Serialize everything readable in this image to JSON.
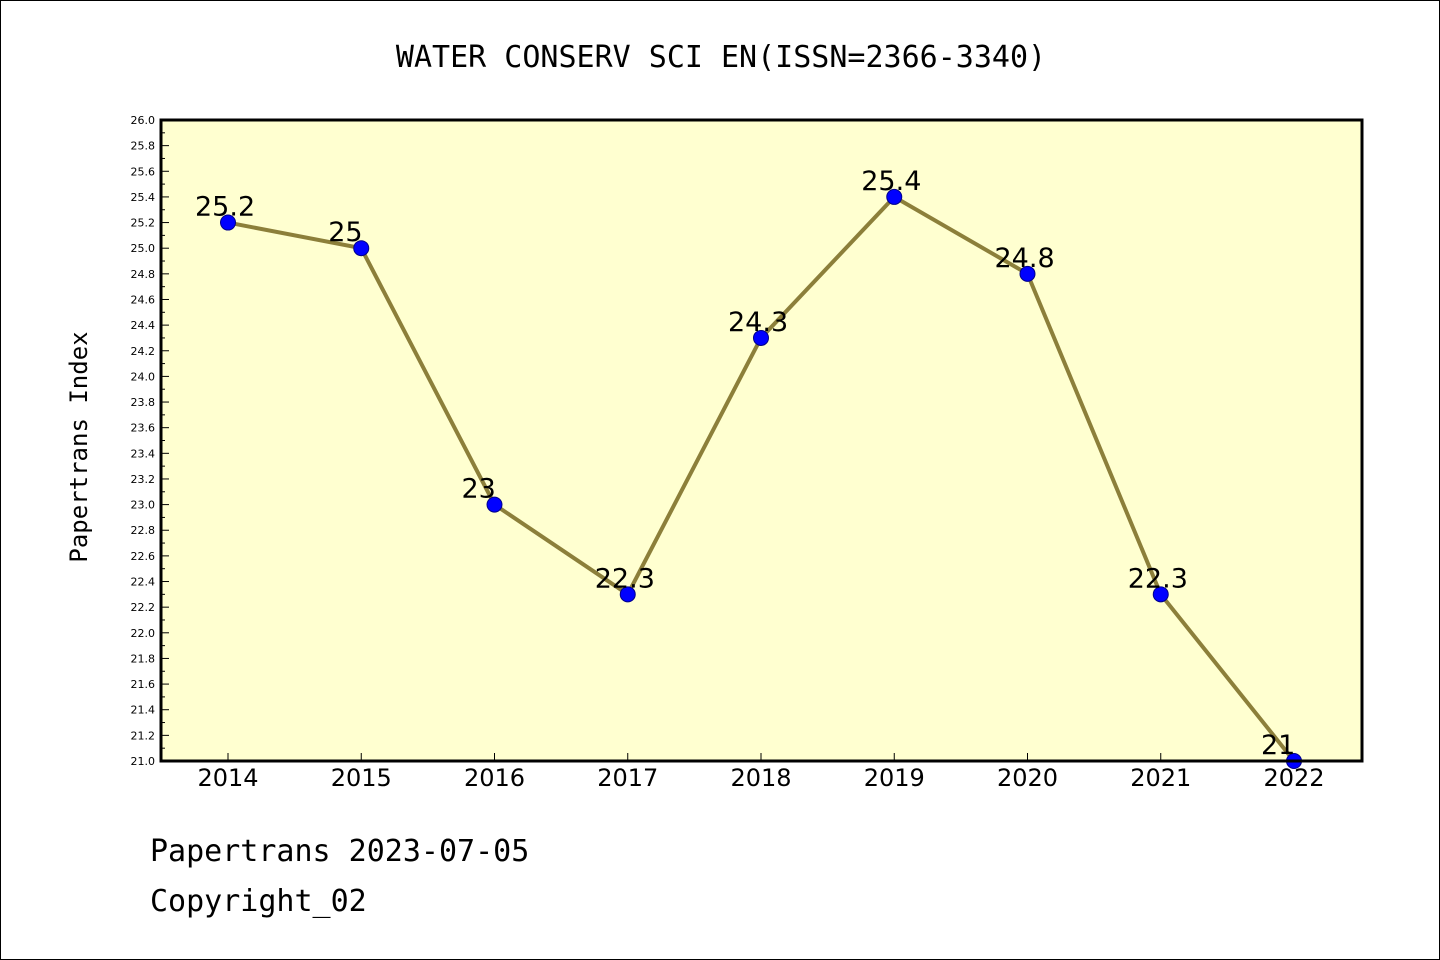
{
  "footer": {
    "line1": "Papertrans 2023-07-05",
    "line2": "Copyright_02"
  },
  "colors": {
    "plot_background": "#ffffd0",
    "line": "#8c7f3a",
    "marker": "#0000ff"
  },
  "chart_data": {
    "type": "line",
    "title": "WATER CONSERV SCI EN(ISSN=2366-3340)",
    "xlabel": "",
    "ylabel": "Papertrans Index",
    "ylim": [
      21.0,
      26.0
    ],
    "ytick_step": 0.2,
    "grid": false,
    "categories": [
      "2014",
      "2015",
      "2016",
      "2017",
      "2018",
      "2019",
      "2020",
      "2021",
      "2022"
    ],
    "series": [
      {
        "values": [
          25.2,
          25,
          23,
          22.3,
          24.3,
          25.4,
          24.8,
          22.3,
          21
        ],
        "labels": [
          "25.2",
          "25",
          "23",
          "22.3",
          "24.3",
          "25.4",
          "24.8",
          "22.3",
          "21"
        ]
      }
    ]
  }
}
